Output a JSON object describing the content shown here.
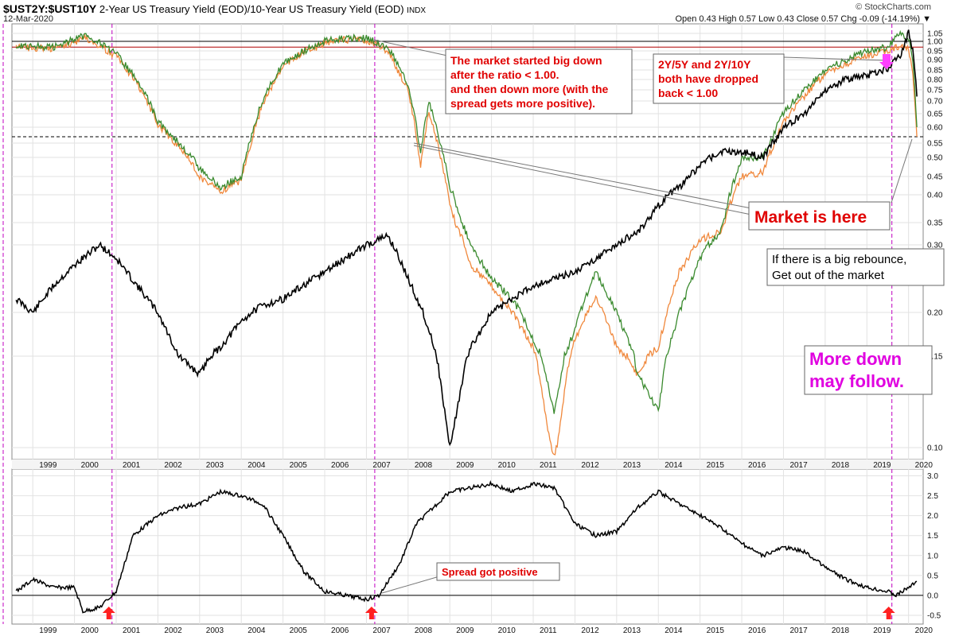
{
  "header": {
    "symbol": "$UST2Y:$UST10Y",
    "description": "2-Year US Treasury Yield (EOD)/10-Year US Treasury Yield (EOD)",
    "exchange": "INDX",
    "date": "12-Mar-2020",
    "brand": "© StockCharts.com",
    "ohlc": "Open 0.43  High 0.57  Low 0.43  Close 0.57  Chg -0.09 (-14.19%) ▼"
  },
  "colors": {
    "ratio_2y10y": "#000000",
    "ratio_2y5y": "#3a8a2e",
    "ratio_alt": "#f0883c",
    "annotation_red": "#e00000",
    "annotation_magenta": "#e000e0",
    "vline": "#c000c0",
    "arrow": "#ff2020",
    "hline_red": "#b00000"
  },
  "annotations": {
    "a1": [
      "The market started big down",
      "after the ratio < 1.00.",
      "and then down more (with the",
      "spread gets more positive)."
    ],
    "a2": [
      "2Y/5Y and 2Y/10Y",
      "both have dropped",
      "back < 1.00"
    ],
    "a3": "Market is here",
    "a4": [
      "If there is a big rebounce,",
      "Get out of the market"
    ],
    "a5": [
      "More down",
      "may follow."
    ],
    "a6": "Spread got positive"
  },
  "chart_data": [
    {
      "type": "line",
      "panel": "main",
      "x_ticks": [
        "1999",
        "2000",
        "2001",
        "2002",
        "2003",
        "2004",
        "2005",
        "2006",
        "2007",
        "2008",
        "2009",
        "2010",
        "2011",
        "2012",
        "2013",
        "2014",
        "2015",
        "2016",
        "2017",
        "2018",
        "2019",
        "2020"
      ],
      "y_ticks": [
        "1.05",
        "1.00",
        "0.95",
        "0.90",
        "0.85",
        "0.80",
        "0.75",
        "0.70",
        "0.65",
        "0.60",
        "0.55",
        "0.50",
        "0.45",
        "0.40",
        "0.35",
        "0.30",
        "0.20",
        "0.15",
        "0.10"
      ],
      "yscale": "nonlinear",
      "reference_lines": [
        1.0,
        0.97,
        0.57
      ],
      "event_dates": [
        2000.9,
        2007.2,
        2019.6
      ],
      "series": [
        {
          "color_key": "ratio_2y10y",
          "points": [
            [
              1998.6,
              0.22
            ],
            [
              1999.0,
              0.2
            ],
            [
              1999.5,
              0.24
            ],
            [
              2000.0,
              0.27
            ],
            [
              2000.6,
              0.3
            ],
            [
              2001.0,
              0.28
            ],
            [
              2001.5,
              0.24
            ],
            [
              2002.0,
              0.2
            ],
            [
              2002.5,
              0.15
            ],
            [
              2003.0,
              0.14
            ],
            [
              2003.5,
              0.16
            ],
            [
              2004.0,
              0.19
            ],
            [
              2004.5,
              0.21
            ],
            [
              2005.0,
              0.22
            ],
            [
              2005.5,
              0.24
            ],
            [
              2006.0,
              0.26
            ],
            [
              2006.5,
              0.28
            ],
            [
              2007.0,
              0.3
            ],
            [
              2007.5,
              0.32
            ],
            [
              2008.0,
              0.25
            ],
            [
              2008.5,
              0.18
            ],
            [
              2009.0,
              0.1
            ],
            [
              2009.5,
              0.16
            ],
            [
              2010.0,
              0.2
            ],
            [
              2010.5,
              0.22
            ],
            [
              2011.0,
              0.24
            ],
            [
              2011.5,
              0.25
            ],
            [
              2012.0,
              0.26
            ],
            [
              2012.5,
              0.28
            ],
            [
              2013.0,
              0.3
            ],
            [
              2013.5,
              0.33
            ],
            [
              2014.0,
              0.38
            ],
            [
              2014.5,
              0.42
            ],
            [
              2015.0,
              0.48
            ],
            [
              2015.5,
              0.52
            ],
            [
              2016.0,
              0.52
            ],
            [
              2016.5,
              0.5
            ],
            [
              2017.0,
              0.6
            ],
            [
              2017.5,
              0.65
            ],
            [
              2018.0,
              0.75
            ],
            [
              2018.5,
              0.8
            ],
            [
              2019.0,
              0.82
            ],
            [
              2019.5,
              0.86
            ],
            [
              2019.8,
              0.92
            ],
            [
              2020.0,
              1.05
            ],
            [
              2020.1,
              0.95
            ],
            [
              2020.2,
              0.72
            ]
          ]
        },
        {
          "color_key": "ratio_2y5y",
          "points": [
            [
              1998.6,
              0.98
            ],
            [
              1999.5,
              0.97
            ],
            [
              2000.3,
              1.04
            ],
            [
              2001.0,
              0.93
            ],
            [
              2001.5,
              0.8
            ],
            [
              2002.0,
              0.62
            ],
            [
              2002.5,
              0.55
            ],
            [
              2003.0,
              0.47
            ],
            [
              2003.5,
              0.42
            ],
            [
              2004.0,
              0.45
            ],
            [
              2004.5,
              0.7
            ],
            [
              2005.0,
              0.88
            ],
            [
              2005.5,
              0.95
            ],
            [
              2006.0,
              1.0
            ],
            [
              2006.5,
              1.02
            ],
            [
              2007.0,
              1.02
            ],
            [
              2007.5,
              0.97
            ],
            [
              2008.0,
              0.78
            ],
            [
              2008.3,
              0.52
            ],
            [
              2008.5,
              0.7
            ],
            [
              2009.0,
              0.42
            ],
            [
              2009.5,
              0.3
            ],
            [
              2010.0,
              0.25
            ],
            [
              2010.5,
              0.22
            ],
            [
              2011.0,
              0.17
            ],
            [
              2011.5,
              0.12
            ],
            [
              2012.0,
              0.18
            ],
            [
              2012.5,
              0.26
            ],
            [
              2013.0,
              0.2
            ],
            [
              2013.5,
              0.14
            ],
            [
              2014.0,
              0.12
            ],
            [
              2014.5,
              0.2
            ],
            [
              2015.0,
              0.28
            ],
            [
              2015.5,
              0.33
            ],
            [
              2016.0,
              0.5
            ],
            [
              2016.5,
              0.5
            ],
            [
              2017.0,
              0.65
            ],
            [
              2017.5,
              0.75
            ],
            [
              2018.0,
              0.85
            ],
            [
              2018.5,
              0.9
            ],
            [
              2019.0,
              0.95
            ],
            [
              2019.5,
              0.97
            ],
            [
              2019.8,
              1.05
            ],
            [
              2020.0,
              1.02
            ],
            [
              2020.1,
              0.9
            ],
            [
              2020.2,
              0.6
            ]
          ]
        },
        {
          "color_key": "ratio_alt",
          "points": [
            [
              1998.6,
              0.97
            ],
            [
              1999.5,
              0.96
            ],
            [
              2000.3,
              1.02
            ],
            [
              2001.0,
              0.92
            ],
            [
              2001.5,
              0.78
            ],
            [
              2002.0,
              0.61
            ],
            [
              2002.5,
              0.54
            ],
            [
              2003.0,
              0.45
            ],
            [
              2003.5,
              0.41
            ],
            [
              2004.0,
              0.44
            ],
            [
              2004.5,
              0.68
            ],
            [
              2005.0,
              0.87
            ],
            [
              2005.5,
              0.94
            ],
            [
              2006.0,
              0.99
            ],
            [
              2006.5,
              1.01
            ],
            [
              2007.0,
              1.01
            ],
            [
              2007.5,
              0.95
            ],
            [
              2008.0,
              0.75
            ],
            [
              2008.3,
              0.48
            ],
            [
              2008.5,
              0.66
            ],
            [
              2009.0,
              0.38
            ],
            [
              2009.5,
              0.27
            ],
            [
              2010.0,
              0.24
            ],
            [
              2010.5,
              0.2
            ],
            [
              2011.0,
              0.16
            ],
            [
              2011.5,
              0.09
            ],
            [
              2012.0,
              0.17
            ],
            [
              2012.5,
              0.22
            ],
            [
              2013.0,
              0.16
            ],
            [
              2013.5,
              0.14
            ],
            [
              2014.0,
              0.16
            ],
            [
              2014.5,
              0.26
            ],
            [
              2015.0,
              0.31
            ],
            [
              2015.5,
              0.33
            ],
            [
              2016.0,
              0.45
            ],
            [
              2016.5,
              0.46
            ],
            [
              2017.0,
              0.62
            ],
            [
              2017.5,
              0.72
            ],
            [
              2018.0,
              0.83
            ],
            [
              2018.5,
              0.88
            ],
            [
              2019.0,
              0.92
            ],
            [
              2019.5,
              0.95
            ],
            [
              2019.8,
              0.98
            ],
            [
              2020.0,
              0.96
            ],
            [
              2020.1,
              0.82
            ],
            [
              2020.2,
              0.57
            ]
          ]
        }
      ]
    },
    {
      "type": "line",
      "panel": "lower",
      "y_ticks": [
        "3.0",
        "2.5",
        "2.0",
        "1.5",
        "1.0",
        "0.5",
        "0.0",
        "-0.5"
      ],
      "ylim": [
        -0.6,
        3.05
      ],
      "reference_lines": [
        0.0
      ],
      "series": [
        {
          "color_key": "ratio_2y10y",
          "points": [
            [
              1998.6,
              0.1
            ],
            [
              1999.0,
              0.4
            ],
            [
              1999.5,
              0.2
            ],
            [
              2000.0,
              0.2
            ],
            [
              2000.2,
              -0.4
            ],
            [
              2000.6,
              -0.3
            ],
            [
              2001.0,
              0.1
            ],
            [
              2001.4,
              1.5
            ],
            [
              2002.0,
              2.0
            ],
            [
              2002.5,
              2.2
            ],
            [
              2003.0,
              2.3
            ],
            [
              2003.5,
              2.6
            ],
            [
              2004.0,
              2.5
            ],
            [
              2004.5,
              2.3
            ],
            [
              2005.0,
              1.5
            ],
            [
              2005.5,
              0.6
            ],
            [
              2006.0,
              0.1
            ],
            [
              2006.5,
              0.0
            ],
            [
              2007.0,
              -0.1
            ],
            [
              2007.3,
              0.0
            ],
            [
              2007.8,
              0.8
            ],
            [
              2008.2,
              1.8
            ],
            [
              2008.7,
              2.3
            ],
            [
              2009.0,
              2.6
            ],
            [
              2009.5,
              2.7
            ],
            [
              2010.0,
              2.8
            ],
            [
              2010.5,
              2.6
            ],
            [
              2011.0,
              2.8
            ],
            [
              2011.5,
              2.7
            ],
            [
              2012.0,
              1.8
            ],
            [
              2012.5,
              1.5
            ],
            [
              2013.0,
              1.6
            ],
            [
              2013.5,
              2.2
            ],
            [
              2014.0,
              2.6
            ],
            [
              2014.5,
              2.3
            ],
            [
              2015.0,
              2.0
            ],
            [
              2015.5,
              1.7
            ],
            [
              2016.0,
              1.3
            ],
            [
              2016.5,
              1.0
            ],
            [
              2017.0,
              1.2
            ],
            [
              2017.5,
              1.1
            ],
            [
              2018.0,
              0.7
            ],
            [
              2018.5,
              0.4
            ],
            [
              2019.0,
              0.2
            ],
            [
              2019.5,
              0.1
            ],
            [
              2019.7,
              0.0
            ],
            [
              2020.0,
              0.2
            ],
            [
              2020.2,
              0.35
            ]
          ]
        }
      ]
    }
  ]
}
